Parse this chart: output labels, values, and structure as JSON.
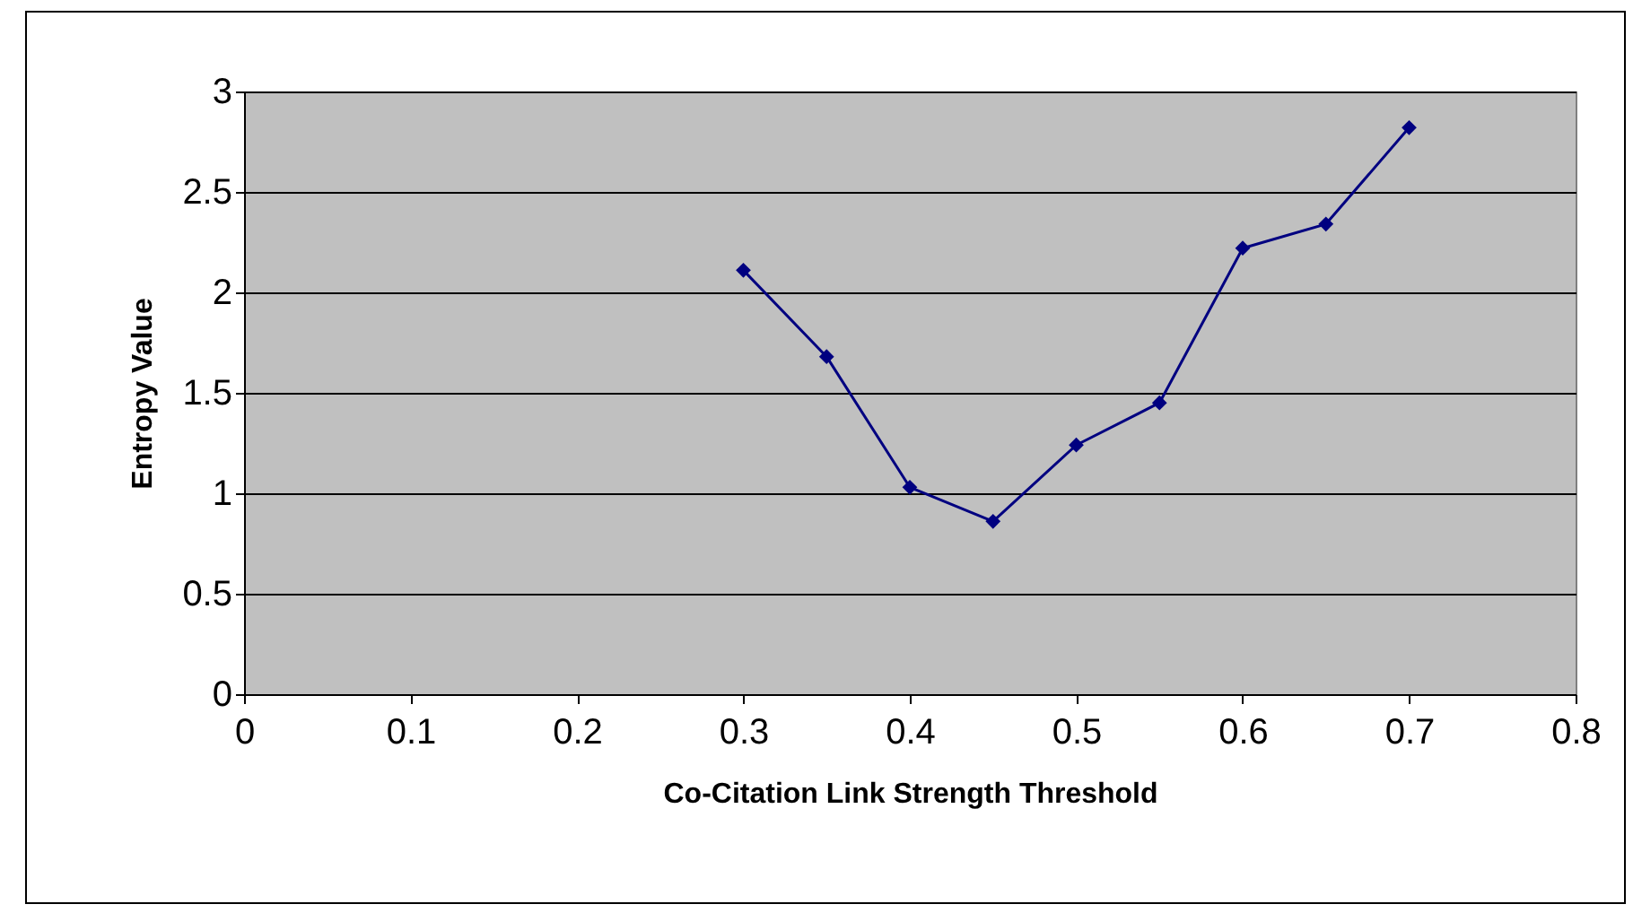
{
  "chart_data": {
    "type": "line",
    "xlabel": "Co-Citation Link Strength Threshold",
    "ylabel": "Entropy Value",
    "x": [
      0.3,
      0.35,
      0.4,
      0.45,
      0.5,
      0.55,
      0.6,
      0.65,
      0.7
    ],
    "series": [
      {
        "color": "#000080",
        "values": [
          2.11,
          1.68,
          1.03,
          0.86,
          1.24,
          1.45,
          2.22,
          2.34,
          2.82
        ]
      }
    ],
    "xlim": [
      0,
      0.8
    ],
    "xticks": [
      0,
      0.1,
      0.2,
      0.3,
      0.4,
      0.5,
      0.6,
      0.7,
      0.8
    ],
    "ylim": [
      0,
      3
    ],
    "yticks": [
      0,
      0.5,
      1,
      1.5,
      2,
      2.5,
      3
    ],
    "grid": "y",
    "marker": "diamond",
    "line_style": "solid"
  }
}
